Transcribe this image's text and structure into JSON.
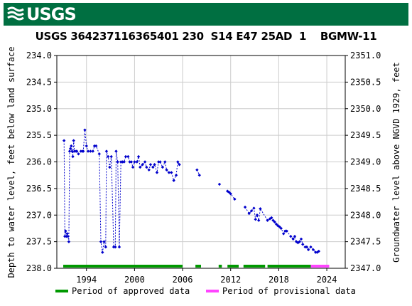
{
  "banner": {
    "logo_text": "USGS",
    "color": "#006f41"
  },
  "chart_data": {
    "type": "scatter",
    "title": "USGS 364237116365401 230  S14 E47 25AD  1    BGMW-11",
    "ylabel_left": "Depth to water level, feet below land surface",
    "ylabel_right": "Groundwater level above NGVD 1929, feet",
    "x_ticks": [
      "1994",
      "2000",
      "2006",
      "2012",
      "2018",
      "2024"
    ],
    "y_left_ticks": [
      "234.0",
      "234.5",
      "235.0",
      "235.5",
      "236.0",
      "236.5",
      "237.0",
      "237.5",
      "238.0"
    ],
    "y_right_ticks": [
      "2351.0",
      "2350.5",
      "2350.0",
      "2349.5",
      "2349.0",
      "2348.5",
      "2348.0",
      "2347.5",
      "2347.0"
    ],
    "xlim": [
      1990.3,
      2026.3
    ],
    "ylim_left": [
      234.0,
      238.0
    ],
    "ylim_right": [
      2347.0,
      2351.0
    ],
    "grid": true,
    "series_color": "#0000cc",
    "points": [
      [
        1991.2,
        235.6
      ],
      [
        1991.3,
        237.4
      ],
      [
        1991.4,
        237.3
      ],
      [
        1991.5,
        237.4
      ],
      [
        1991.6,
        237.35
      ],
      [
        1991.7,
        237.4
      ],
      [
        1991.8,
        237.5
      ],
      [
        1991.9,
        235.8
      ],
      [
        1992.0,
        235.75
      ],
      [
        1992.1,
        235.7
      ],
      [
        1992.2,
        235.8
      ],
      [
        1992.3,
        235.9
      ],
      [
        1992.4,
        235.6
      ],
      [
        1992.5,
        235.8
      ],
      [
        1992.7,
        235.8
      ],
      [
        1992.8,
        235.8
      ],
      [
        1993.0,
        235.85
      ],
      [
        1993.3,
        235.8
      ],
      [
        1993.5,
        235.8
      ],
      [
        1993.6,
        235.8
      ],
      [
        1993.8,
        235.4
      ],
      [
        1994.0,
        235.7
      ],
      [
        1994.2,
        235.8
      ],
      [
        1994.5,
        235.8
      ],
      [
        1994.8,
        235.8
      ],
      [
        1995.0,
        235.7
      ],
      [
        1995.2,
        235.7
      ],
      [
        1995.6,
        235.85
      ],
      [
        1995.8,
        237.5
      ],
      [
        1996.0,
        237.7
      ],
      [
        1996.2,
        237.5
      ],
      [
        1996.4,
        237.6
      ],
      [
        1996.5,
        235.8
      ],
      [
        1996.7,
        235.9
      ],
      [
        1996.9,
        236.1
      ],
      [
        1997.1,
        235.9
      ],
      [
        1997.4,
        237.6
      ],
      [
        1997.6,
        237.6
      ],
      [
        1997.7,
        235.8
      ],
      [
        1997.9,
        236.0
      ],
      [
        1998.1,
        237.6
      ],
      [
        1998.3,
        236.0
      ],
      [
        1998.5,
        236.0
      ],
      [
        1998.7,
        236.0
      ],
      [
        1998.9,
        235.9
      ],
      [
        1999.2,
        235.9
      ],
      [
        1999.4,
        236.0
      ],
      [
        1999.6,
        236.0
      ],
      [
        1999.8,
        236.1
      ],
      [
        2000.0,
        236.0
      ],
      [
        2000.3,
        236.0
      ],
      [
        2000.5,
        235.9
      ],
      [
        2000.7,
        236.1
      ],
      [
        2001.0,
        236.05
      ],
      [
        2001.3,
        236.0
      ],
      [
        2001.5,
        236.1
      ],
      [
        2001.8,
        236.15
      ],
      [
        2002.0,
        236.05
      ],
      [
        2002.3,
        236.1
      ],
      [
        2002.5,
        236.05
      ],
      [
        2002.8,
        236.2
      ],
      [
        2003.0,
        236.0
      ],
      [
        2003.2,
        236.0
      ],
      [
        2003.5,
        236.1
      ],
      [
        2003.8,
        236.0
      ],
      [
        2004.0,
        236.15
      ],
      [
        2004.3,
        236.2
      ],
      [
        2004.6,
        236.2
      ],
      [
        2004.9,
        236.35
      ],
      [
        2005.2,
        236.25
      ],
      [
        2005.4,
        236.0
      ],
      [
        2005.6,
        236.05
      ],
      [
        2007.8,
        236.15
      ],
      [
        2008.1,
        236.25
      ],
      [
        2010.6,
        236.42
      ],
      [
        2011.6,
        236.55
      ],
      [
        2011.8,
        236.57
      ],
      [
        2012.0,
        236.6
      ],
      [
        2012.5,
        236.7
      ],
      [
        2013.8,
        236.85
      ],
      [
        2014.3,
        236.97
      ],
      [
        2014.6,
        236.92
      ],
      [
        2014.9,
        236.87
      ],
      [
        2015.1,
        237.08
      ],
      [
        2015.3,
        237.0
      ],
      [
        2015.5,
        237.1
      ],
      [
        2015.7,
        236.88
      ],
      [
        2016.6,
        237.1
      ],
      [
        2016.9,
        237.07
      ],
      [
        2017.1,
        237.05
      ],
      [
        2017.3,
        237.1
      ],
      [
        2017.5,
        237.13
      ],
      [
        2017.7,
        237.17
      ],
      [
        2017.9,
        237.2
      ],
      [
        2018.1,
        237.22
      ],
      [
        2018.3,
        237.25
      ],
      [
        2018.6,
        237.35
      ],
      [
        2018.8,
        237.3
      ],
      [
        2019.0,
        237.3
      ],
      [
        2019.5,
        237.4
      ],
      [
        2019.8,
        237.45
      ],
      [
        2020.0,
        237.4
      ],
      [
        2020.2,
        237.5
      ],
      [
        2020.4,
        237.52
      ],
      [
        2020.6,
        237.5
      ],
      [
        2020.8,
        237.45
      ],
      [
        2021.0,
        237.55
      ],
      [
        2021.3,
        237.6
      ],
      [
        2021.5,
        237.6
      ],
      [
        2021.7,
        237.65
      ],
      [
        2022.0,
        237.6
      ],
      [
        2022.3,
        237.65
      ],
      [
        2022.6,
        237.7
      ],
      [
        2022.8,
        237.7
      ],
      [
        2023.0,
        237.68
      ]
    ],
    "approved_periods": [
      [
        1991.1,
        2006.0
      ],
      [
        2007.6,
        2008.3
      ],
      [
        2010.5,
        2010.9
      ],
      [
        2011.6,
        2013.0
      ],
      [
        2013.6,
        2016.3
      ],
      [
        2016.6,
        2022.0
      ]
    ],
    "provisional_periods": [
      [
        2022.0,
        2024.3
      ]
    ],
    "approved_color": "#009900",
    "provisional_color": "#ff44ff",
    "legend": [
      {
        "label": "Period of approved data",
        "color": "#009900"
      },
      {
        "label": "Period of provisional data",
        "color": "#ff44ff"
      }
    ]
  }
}
